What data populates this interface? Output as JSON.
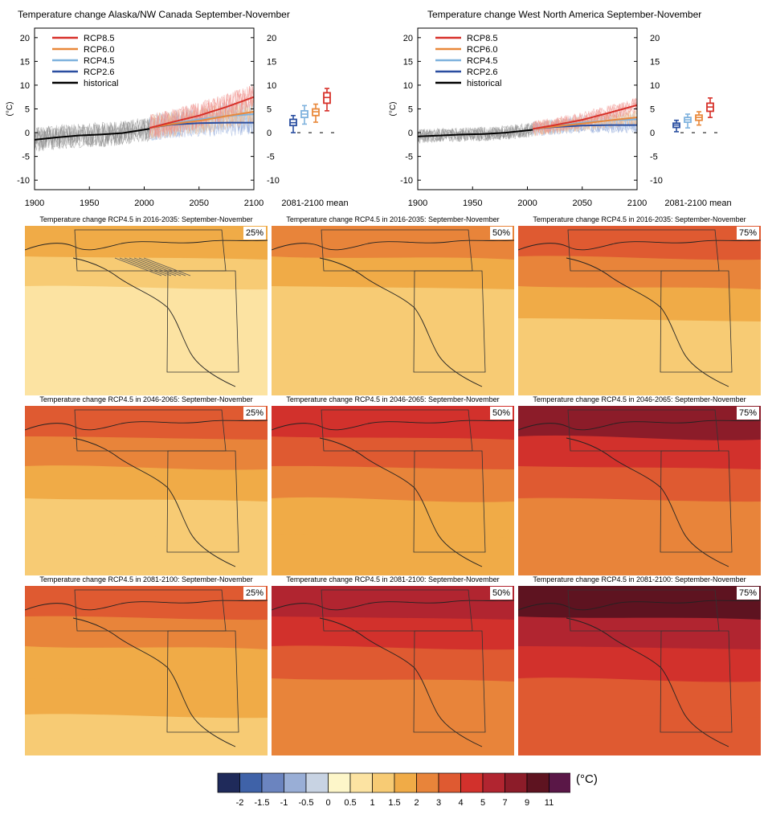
{
  "chart_data": [
    {
      "type": "line",
      "title": "Temperature change Alaska/NW Canada September-November",
      "ylabel": "(°C)",
      "xlim": [
        1900,
        2100
      ],
      "ylim": [
        -12,
        22
      ],
      "x_ticks": [
        1900,
        1950,
        2000,
        2050,
        2100
      ],
      "y_ticks": [
        -10,
        -5,
        0,
        5,
        10,
        15,
        20
      ],
      "legend_position": "top-left",
      "legend": [
        "RCP8.5",
        "RCP6.0",
        "RCP4.5",
        "RCP2.6",
        "historical"
      ],
      "series": [
        {
          "name": "historical",
          "color": "#000000",
          "x": [
            1900,
            1920,
            1940,
            1960,
            1980,
            2005
          ],
          "y": [
            -1.5,
            -1.0,
            -0.6,
            -0.4,
            -0.1,
            0.8
          ]
        },
        {
          "name": "RCP2.6",
          "color": "#2a4ea0",
          "x": [
            2005,
            2025,
            2050,
            2075,
            2100
          ],
          "y": [
            1.0,
            1.7,
            2.0,
            2.1,
            2.1
          ]
        },
        {
          "name": "RCP4.5",
          "color": "#7fb2de",
          "x": [
            2005,
            2025,
            2050,
            2075,
            2100
          ],
          "y": [
            1.0,
            1.9,
            2.8,
            3.5,
            3.9
          ]
        },
        {
          "name": "RCP6.0",
          "color": "#e9883a",
          "x": [
            2005,
            2025,
            2050,
            2075,
            2100
          ],
          "y": [
            1.0,
            1.8,
            2.5,
            3.5,
            4.4
          ]
        },
        {
          "name": "RCP8.5",
          "color": "#d7312a",
          "x": [
            2005,
            2025,
            2050,
            2075,
            2100
          ],
          "y": [
            1.0,
            2.2,
            3.6,
            5.4,
            7.5
          ]
        }
      ],
      "box_label": "2081-2100 mean",
      "boxes": [
        {
          "name": "RCP2.6",
          "color": "#2a4ea0",
          "min": 0.0,
          "q1": 1.5,
          "median": 2.1,
          "q3": 2.8,
          "max": 3.6
        },
        {
          "name": "RCP4.5",
          "color": "#7fb2de",
          "min": 1.8,
          "q1": 3.2,
          "median": 3.9,
          "q3": 4.6,
          "max": 5.7
        },
        {
          "name": "RCP6.0",
          "color": "#e9883a",
          "min": 2.2,
          "q1": 3.6,
          "median": 4.4,
          "q3": 5.0,
          "max": 6.0
        },
        {
          "name": "RCP8.5",
          "color": "#d7312a",
          "min": 4.6,
          "q1": 6.2,
          "median": 7.4,
          "q3": 8.4,
          "max": 9.3
        }
      ]
    },
    {
      "type": "line",
      "title": "Temperature change West North America September-November",
      "ylabel": "(°C)",
      "xlim": [
        1900,
        2100
      ],
      "ylim": [
        -12,
        22
      ],
      "x_ticks": [
        1900,
        1950,
        2000,
        2050,
        2100
      ],
      "y_ticks": [
        -10,
        -5,
        0,
        5,
        10,
        15,
        20
      ],
      "legend_position": "top-left",
      "legend": [
        "RCP8.5",
        "RCP6.0",
        "RCP4.5",
        "RCP2.6",
        "historical"
      ],
      "series": [
        {
          "name": "historical",
          "color": "#000000",
          "x": [
            1900,
            1920,
            1940,
            1960,
            1980,
            2005
          ],
          "y": [
            -0.8,
            -0.6,
            -0.4,
            -0.3,
            0.0,
            0.6
          ]
        },
        {
          "name": "RCP2.6",
          "color": "#2a4ea0",
          "x": [
            2005,
            2025,
            2050,
            2075,
            2100
          ],
          "y": [
            0.8,
            1.2,
            1.5,
            1.6,
            1.6
          ]
        },
        {
          "name": "RCP4.5",
          "color": "#7fb2de",
          "x": [
            2005,
            2025,
            2050,
            2075,
            2100
          ],
          "y": [
            0.8,
            1.4,
            2.1,
            2.6,
            2.8
          ]
        },
        {
          "name": "RCP6.0",
          "color": "#e9883a",
          "x": [
            2005,
            2025,
            2050,
            2075,
            2100
          ],
          "y": [
            0.8,
            1.3,
            1.9,
            2.6,
            3.2
          ]
        },
        {
          "name": "RCP8.5",
          "color": "#d7312a",
          "x": [
            2005,
            2025,
            2050,
            2075,
            2100
          ],
          "y": [
            0.8,
            1.6,
            2.7,
            4.2,
            5.8
          ]
        }
      ],
      "box_label": "2081-2100 mean",
      "boxes": [
        {
          "name": "RCP2.6",
          "color": "#2a4ea0",
          "min": 0.2,
          "q1": 1.1,
          "median": 1.6,
          "q3": 2.0,
          "max": 2.6
        },
        {
          "name": "RCP4.5",
          "color": "#7fb2de",
          "min": 1.0,
          "q1": 2.2,
          "median": 2.7,
          "q3": 3.2,
          "max": 3.9
        },
        {
          "name": "RCP6.0",
          "color": "#e9883a",
          "min": 1.6,
          "q1": 2.6,
          "median": 3.2,
          "q3": 3.7,
          "max": 4.4
        },
        {
          "name": "RCP8.5",
          "color": "#d7312a",
          "min": 3.2,
          "q1": 4.5,
          "median": 5.4,
          "q3": 6.2,
          "max": 7.3
        }
      ]
    },
    {
      "type": "heatmap",
      "maps": [
        {
          "title": "Temperature change RCP4.5 in 2016-2035: September-November",
          "percentile": "25%",
          "bands": [
            1.5,
            1.0,
            0.8,
            0.8,
            0.6
          ]
        },
        {
          "title": "Temperature change RCP4.5 in 2016-2035: September-November",
          "percentile": "50%",
          "bands": [
            2.2,
            1.6,
            1.2,
            1.0,
            1.0
          ]
        },
        {
          "title": "Temperature change RCP4.5 in 2016-2035: September-November",
          "percentile": "75%",
          "bands": [
            3.2,
            2.2,
            1.6,
            1.3,
            1.2
          ]
        },
        {
          "title": "Temperature change RCP4.5 in 2046-2065: September-November",
          "percentile": "25%",
          "bands": [
            3.0,
            2.2,
            1.6,
            1.2,
            1.0
          ]
        },
        {
          "title": "Temperature change RCP4.5 in 2046-2065: September-November",
          "percentile": "50%",
          "bands": [
            4.5,
            3.2,
            2.2,
            1.8,
            1.7
          ]
        },
        {
          "title": "Temperature change RCP4.5 in 2046-2065: September-November",
          "percentile": "75%",
          "bands": [
            8.0,
            4.5,
            3.0,
            2.6,
            2.6
          ]
        },
        {
          "title": "Temperature change RCP4.5 in 2081-2100: September-November",
          "percentile": "25%",
          "bands": [
            3.5,
            2.6,
            1.8,
            1.5,
            1.2
          ]
        },
        {
          "title": "Temperature change RCP4.5 in 2081-2100: September-November",
          "percentile": "50%",
          "bands": [
            6.5,
            4.2,
            3.0,
            2.6,
            2.4
          ]
        },
        {
          "title": "Temperature change RCP4.5 in 2081-2100: September-November",
          "percentile": "75%",
          "bands": [
            9.5,
            5.5,
            4.2,
            3.3,
            3.3
          ]
        }
      ]
    }
  ],
  "colorbar": {
    "unit": "(°C)",
    "labels": [
      "-2",
      "-1.5",
      "-1",
      "-0.5",
      "0",
      "0.5",
      "1",
      "1.5",
      "2",
      "3",
      "4",
      "5",
      "7",
      "9",
      "11"
    ],
    "thresholds": [
      -2,
      -1.5,
      -1,
      -0.5,
      0,
      0.5,
      1,
      1.5,
      2,
      3,
      4,
      5,
      7,
      9,
      11
    ],
    "colors": [
      "#1f2a5a",
      "#3f62a8",
      "#6b84bf",
      "#99aed6",
      "#c8d3e3",
      "#fdf6c9",
      "#fce3a2",
      "#f7cb74",
      "#f0ab47",
      "#e8843a",
      "#df5a31",
      "#d2312c",
      "#b12530",
      "#8c1c29",
      "#5e1320",
      "#5a1747"
    ]
  }
}
